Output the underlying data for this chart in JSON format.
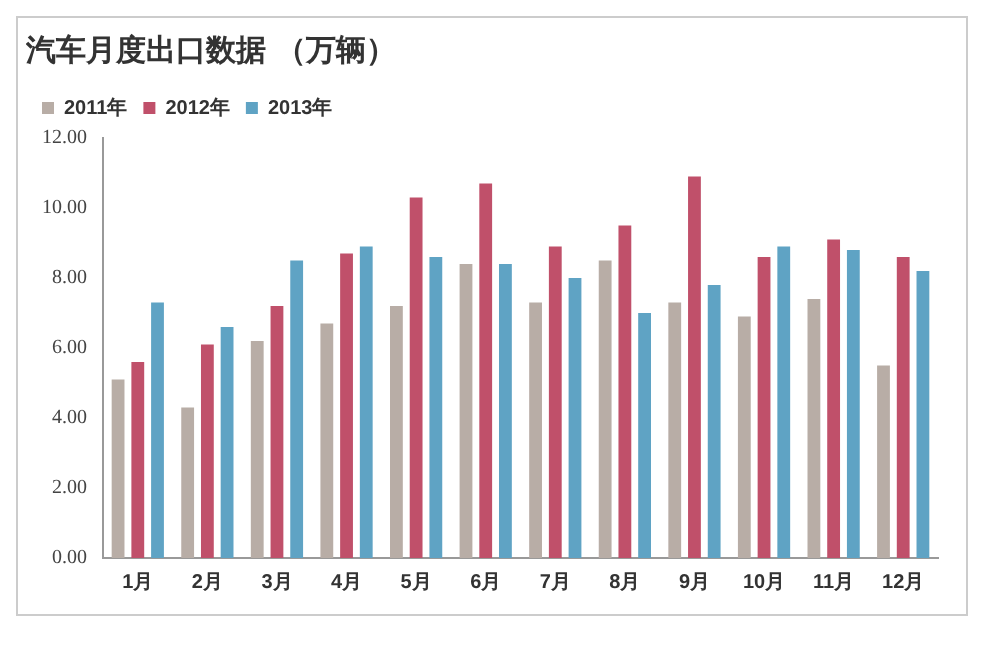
{
  "chart_data": {
    "type": "bar",
    "title": "汽车月度出口数据 （万辆）",
    "categories": [
      "1月",
      "2月",
      "3月",
      "4月",
      "5月",
      "6月",
      "7月",
      "8月",
      "9月",
      "10月",
      "11月",
      "12月"
    ],
    "series": [
      {
        "name": "2011年",
        "color": "#b8ada6",
        "values": [
          5.1,
          4.3,
          6.2,
          6.7,
          7.2,
          8.4,
          7.3,
          8.5,
          7.3,
          6.9,
          7.4,
          5.5
        ]
      },
      {
        "name": "2012年",
        "color": "#c0506a",
        "values": [
          5.6,
          6.1,
          7.2,
          8.7,
          10.3,
          10.7,
          8.9,
          9.5,
          10.9,
          8.6,
          9.1,
          8.6
        ]
      },
      {
        "name": "2013年",
        "color": "#5fa3c4",
        "values": [
          7.3,
          6.6,
          8.5,
          8.9,
          8.6,
          8.4,
          8.0,
          7.0,
          7.8,
          8.9,
          8.8,
          8.2
        ]
      }
    ],
    "ylim": [
      0,
      12
    ],
    "yticks": [
      {
        "value": 0,
        "label": "0.00"
      },
      {
        "value": 2,
        "label": "2.00"
      },
      {
        "value": 4,
        "label": "4.00"
      },
      {
        "value": 6,
        "label": "6.00"
      },
      {
        "value": 8,
        "label": "8.00"
      },
      {
        "value": 10,
        "label": "10.00"
      },
      {
        "value": 12,
        "label": "12.00"
      }
    ],
    "grid": false,
    "legend": "top left"
  }
}
